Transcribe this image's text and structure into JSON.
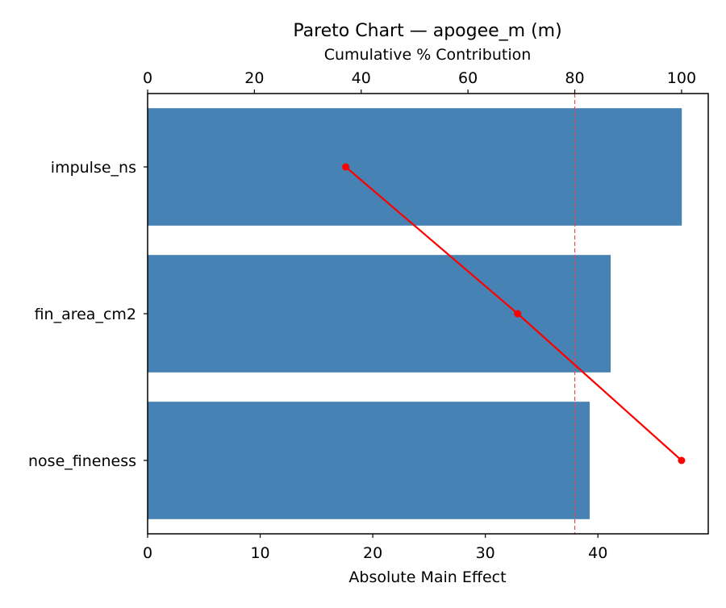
{
  "chart_data": {
    "type": "bar",
    "orientation": "horizontal",
    "title": "Pareto Chart — apogee_m (m)",
    "xlabel": "Absolute Main Effect",
    "x2label": "Cumulative % Contribution",
    "categories": [
      "impulse_ns",
      "fin_area_cm2",
      "nose_fineness"
    ],
    "values": [
      47.45,
      41.13,
      39.27
    ],
    "cumulative_percent": [
      37.1,
      69.3,
      100.0
    ],
    "threshold_percent": 80,
    "xlim": [
      0,
      49.8
    ],
    "x2lim": [
      0,
      105
    ],
    "xticks": [
      0,
      10,
      20,
      30,
      40
    ],
    "x2ticks": [
      0,
      20,
      40,
      60,
      80,
      100
    ],
    "grid": false,
    "colors": {
      "bars": "#4682b4",
      "cumulative_line": "#ff0000",
      "threshold_line": "#e8474a"
    }
  }
}
